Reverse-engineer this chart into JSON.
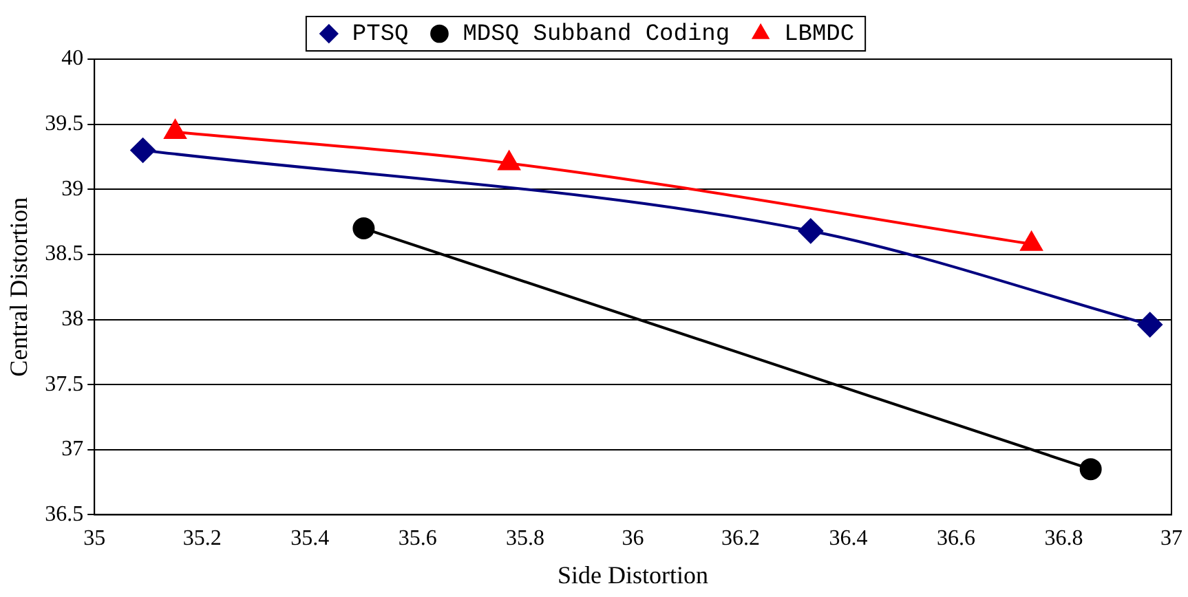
{
  "chart_data": {
    "type": "line",
    "xlabel": "Side Distortion",
    "ylabel": "Central Distortion",
    "xlim": [
      35,
      37
    ],
    "xticks": [
      35,
      35.2,
      35.4,
      35.6,
      35.8,
      36,
      36.2,
      36.4,
      36.6,
      36.8,
      37
    ],
    "ylim": [
      36.5,
      40
    ],
    "yticks": [
      36.5,
      37,
      37.5,
      38,
      38.5,
      39,
      39.5,
      40
    ],
    "grid": "y",
    "legend": "top",
    "line_style": "solid",
    "series": [
      {
        "name": "PTSQ",
        "color": "#000080",
        "marker": "diamond",
        "x": [
          35.09,
          36.33,
          36.96
        ],
        "values": [
          39.3,
          38.68,
          37.96
        ]
      },
      {
        "name": "MDSQ Subband Coding",
        "color": "#000000",
        "marker": "circle",
        "x": [
          35.5,
          36.85
        ],
        "values": [
          38.7,
          36.85
        ]
      },
      {
        "name": "LBMDC",
        "color": "#ff0000",
        "marker": "triangle",
        "x": [
          35.15,
          35.77,
          36.74
        ],
        "values": [
          39.44,
          39.2,
          38.58
        ]
      }
    ]
  }
}
